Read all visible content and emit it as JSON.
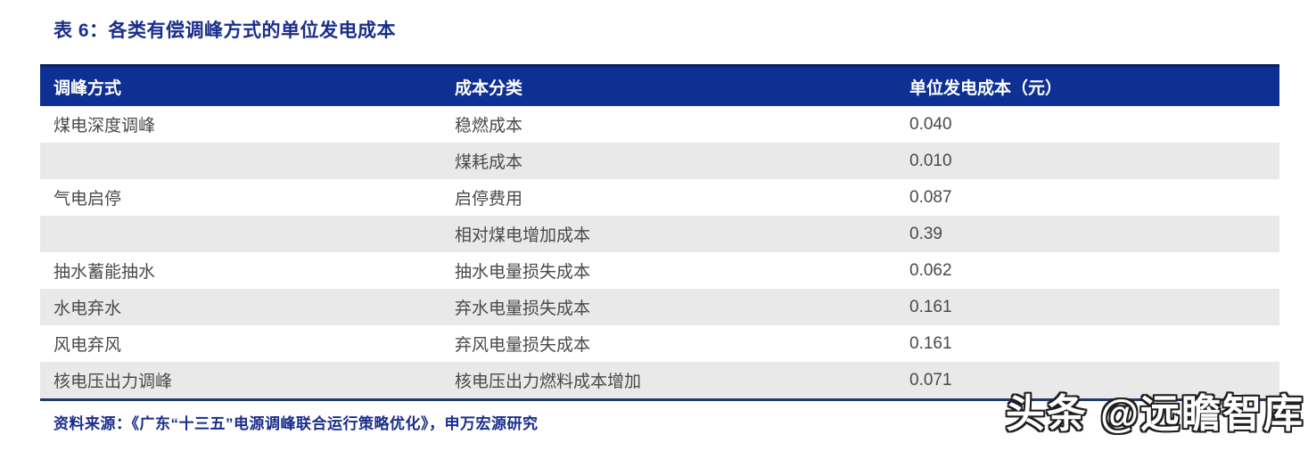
{
  "title": "表 6：各类有偿调峰方式的单位发电成本",
  "table": {
    "columns": [
      "调峰方式",
      "成本分类",
      "单位发电成本（元）"
    ],
    "rows": [
      {
        "method": "煤电深度调峰",
        "cost_category": "稳燃成本",
        "unit_cost": "0.040"
      },
      {
        "method": "",
        "cost_category": "煤耗成本",
        "unit_cost": "0.010"
      },
      {
        "method": "气电启停",
        "cost_category": "启停费用",
        "unit_cost": "0.087"
      },
      {
        "method": "",
        "cost_category": "相对煤电增加成本",
        "unit_cost": "0.39"
      },
      {
        "method": "抽水蓄能抽水",
        "cost_category": "抽水电量损失成本",
        "unit_cost": "0.062"
      },
      {
        "method": "水电弃水",
        "cost_category": "弃水电量损失成本",
        "unit_cost": "0.161"
      },
      {
        "method": "风电弃风",
        "cost_category": "弃风电量损失成本",
        "unit_cost": "0.161"
      },
      {
        "method": "核电压出力调峰",
        "cost_category": "核电压出力燃料成本增加",
        "unit_cost": "0.071"
      }
    ]
  },
  "source": "资料来源：《广东“十三五”电源调峰联合运行策略优化》，申万宏源研究",
  "watermark": "头条 @远瞻智库",
  "colors": {
    "header_bg": "#0E3092",
    "header_top_border": "#0A2060",
    "header_text": "#FFFFFF",
    "title_color": "#1A2E8C",
    "body_text": "#4A4A4A",
    "stripe": "#E9E9E9",
    "bottom_border": "#1E3A6E",
    "page_bg": "#FFFFFF"
  }
}
